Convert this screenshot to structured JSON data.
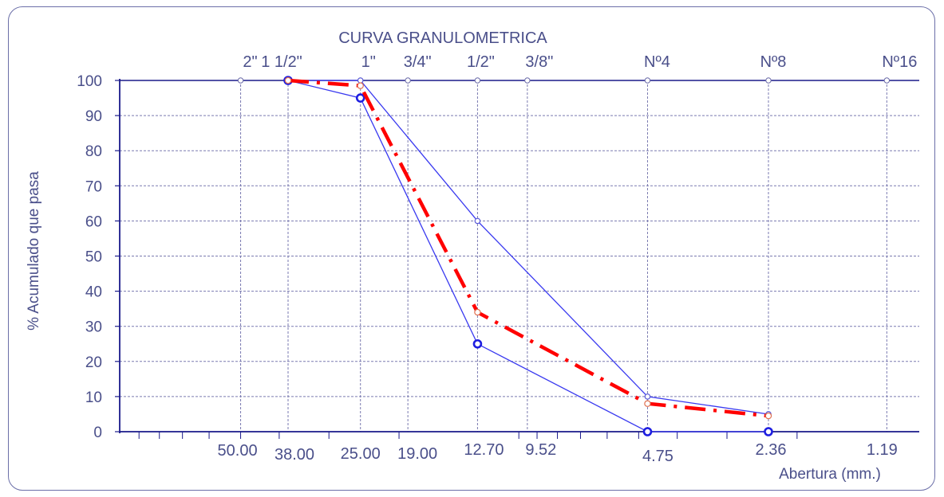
{
  "chart_data": {
    "type": "line",
    "title": "CURVA GRANULOMETRICA",
    "xlabel": "Abertura  (mm.)",
    "ylabel": "% Acumulado que pasa",
    "ylim": [
      0,
      100
    ],
    "yticks": [
      0,
      10,
      20,
      30,
      40,
      50,
      60,
      70,
      80,
      90,
      100
    ],
    "x_scale": "log-reversed",
    "sieves": [
      {
        "name": "2\"",
        "opening_label": "50.00",
        "opening": 50.0
      },
      {
        "name": "1 1/2\"",
        "opening_label": "38.00",
        "opening": 38.0
      },
      {
        "name": "1\"",
        "opening_label": "25.00",
        "opening": 25.0
      },
      {
        "name": "3/4\"",
        "opening_label": "19.00",
        "opening": 19.0
      },
      {
        "name": "1/2\"",
        "opening_label": "12.70",
        "opening": 12.7
      },
      {
        "name": "3/8\"",
        "opening_label": "9.52",
        "opening": 9.52
      },
      {
        "name": "Nº4",
        "opening_label": "4.75",
        "opening": 4.75
      },
      {
        "name": "Nº8",
        "opening_label": "2.36",
        "opening": 2.36
      },
      {
        "name": "Nº16",
        "opening_label": "1.19",
        "opening": 1.19
      }
    ],
    "series": [
      {
        "role": "upper_limit",
        "color": "#3a3af0",
        "x": [
          38.0,
          25.0,
          12.7,
          4.75,
          2.36
        ],
        "y": [
          100,
          100,
          60,
          10,
          5
        ]
      },
      {
        "role": "lower_limit",
        "color": "#3a3af0",
        "x": [
          38.0,
          25.0,
          12.7,
          4.75,
          2.36
        ],
        "y": [
          100,
          95,
          25,
          0,
          0
        ]
      },
      {
        "role": "sample",
        "color": "#ff0000",
        "x": [
          38.0,
          25.0,
          12.7,
          4.75,
          2.36
        ],
        "y": [
          100,
          98.5,
          34,
          8,
          4.5
        ]
      }
    ],
    "grid": true
  }
}
